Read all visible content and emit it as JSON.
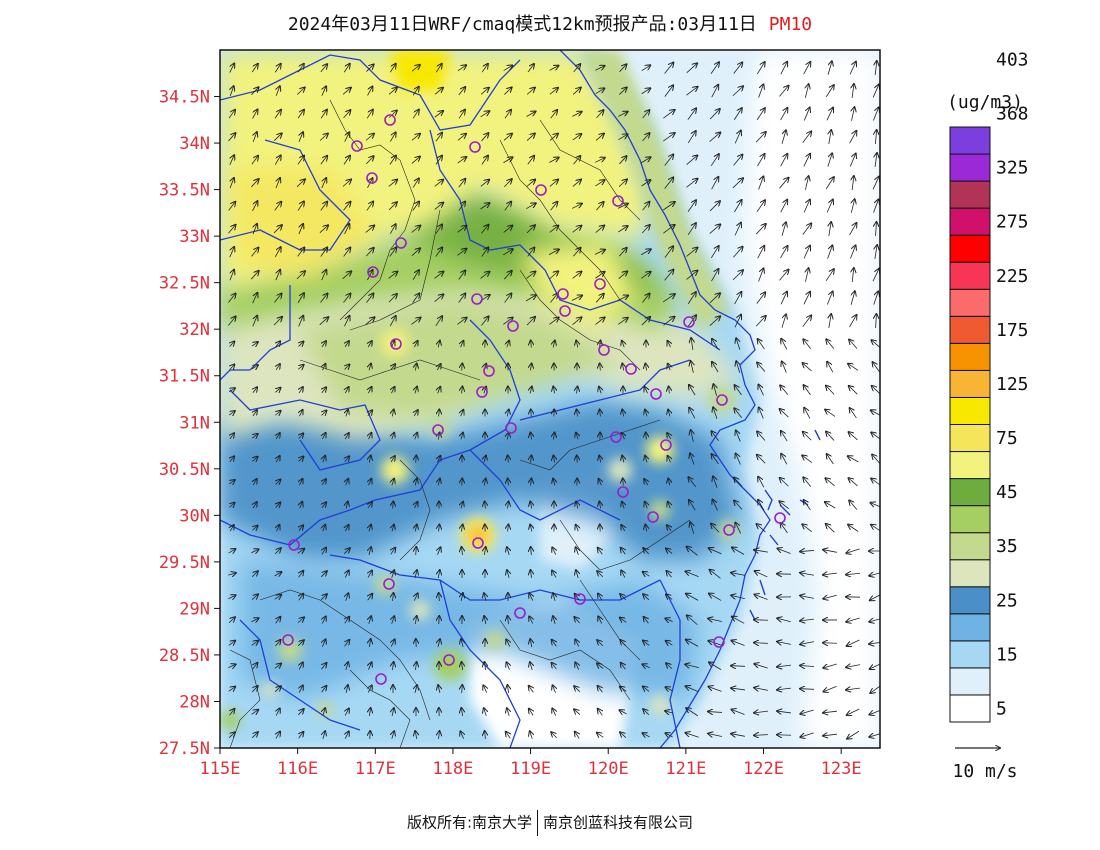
{
  "title": {
    "main": "2024年03月11日WRF/cmaq模式12km预报产品:03月11日",
    "pollutant": "PM10"
  },
  "map": {
    "lat_ticks": [
      "34.5N",
      "34N",
      "33.5N",
      "33N",
      "32.5N",
      "32N",
      "31.5N",
      "31N",
      "30.5N",
      "30N",
      "29.5N",
      "29N",
      "28.5N",
      "28N",
      "27.5N"
    ],
    "lon_ticks": [
      "115E",
      "116E",
      "117E",
      "118E",
      "119E",
      "120E",
      "121E",
      "122E",
      "123E"
    ],
    "lat_range": [
      27.5,
      35.0
    ],
    "lon_range": [
      115.0,
      123.5
    ],
    "tick_color": "#e0303a"
  },
  "colorbar": {
    "unit": "(ug/m3)",
    "labels": [
      "5",
      "15",
      "25",
      "35",
      "45",
      "75",
      "125",
      "175",
      "225",
      "275",
      "325",
      "368",
      "403"
    ],
    "colors": [
      "#ffffff",
      "#dff0fb",
      "#a6d8f4",
      "#6fb3e4",
      "#4a8fc7",
      "#dde5bf",
      "#c3d98e",
      "#a5cf62",
      "#6fac3e",
      "#f2f27e",
      "#f5e55a",
      "#f8e800",
      "#f8b535",
      "#f79300",
      "#ef5a30",
      "#fb6b6b",
      "#f83554",
      "#ff0000",
      "#d0106a",
      "#b13355",
      "#9b29d8",
      "#7d3ee0"
    ]
  },
  "wind_legend": {
    "label": "10 m/s"
  },
  "footer": {
    "left": "版权所有:南京大学",
    "right": "南京创蓝科技有限公司"
  }
}
